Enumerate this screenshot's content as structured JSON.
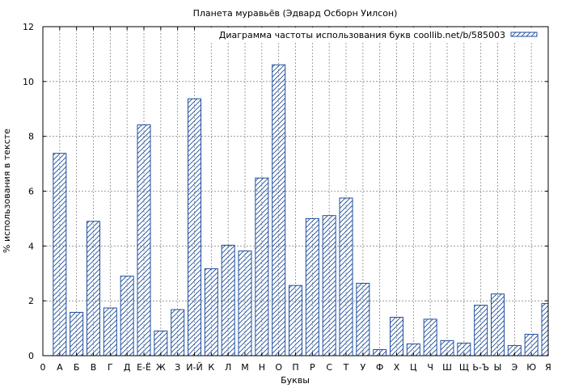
{
  "chart_data": {
    "type": "bar",
    "title": "Планета муравьёв (Эдвард Осборн Уилсон)",
    "xlabel": "Буквы",
    "ylabel": "% использования в тексте",
    "ylim": [
      0,
      12
    ],
    "yticks": [
      "0",
      "2",
      "4",
      "6",
      "8",
      "10",
      "12"
    ],
    "x_origin_label": "0",
    "grid": true,
    "legend_position": "top-right",
    "bar_color": "#1f4e9c",
    "series": [
      {
        "name": "Диаграмма частоты использования букв coollib.net/b/585003",
        "values": [
          7.38,
          1.58,
          4.9,
          1.74,
          2.9,
          8.42,
          0.9,
          1.68,
          9.37,
          3.17,
          4.03,
          3.82,
          6.48,
          10.61,
          2.56,
          5.0,
          5.11,
          5.75,
          2.64,
          0.22,
          1.4,
          0.43,
          1.33,
          0.55,
          0.46,
          1.84,
          2.25,
          0.37,
          0.78,
          1.9
        ]
      }
    ],
    "categories": [
      "А",
      "Б",
      "В",
      "Г",
      "Д",
      "Е-Ё",
      "Ж",
      "З",
      "И-Й",
      "К",
      "Л",
      "М",
      "Н",
      "О",
      "П",
      "Р",
      "С",
      "Т",
      "У",
      "Ф",
      "Х",
      "Ц",
      "Ч",
      "Ш",
      "Щ",
      "Ь-Ъ",
      "Ы",
      "Э",
      "Ю",
      "Я"
    ]
  }
}
